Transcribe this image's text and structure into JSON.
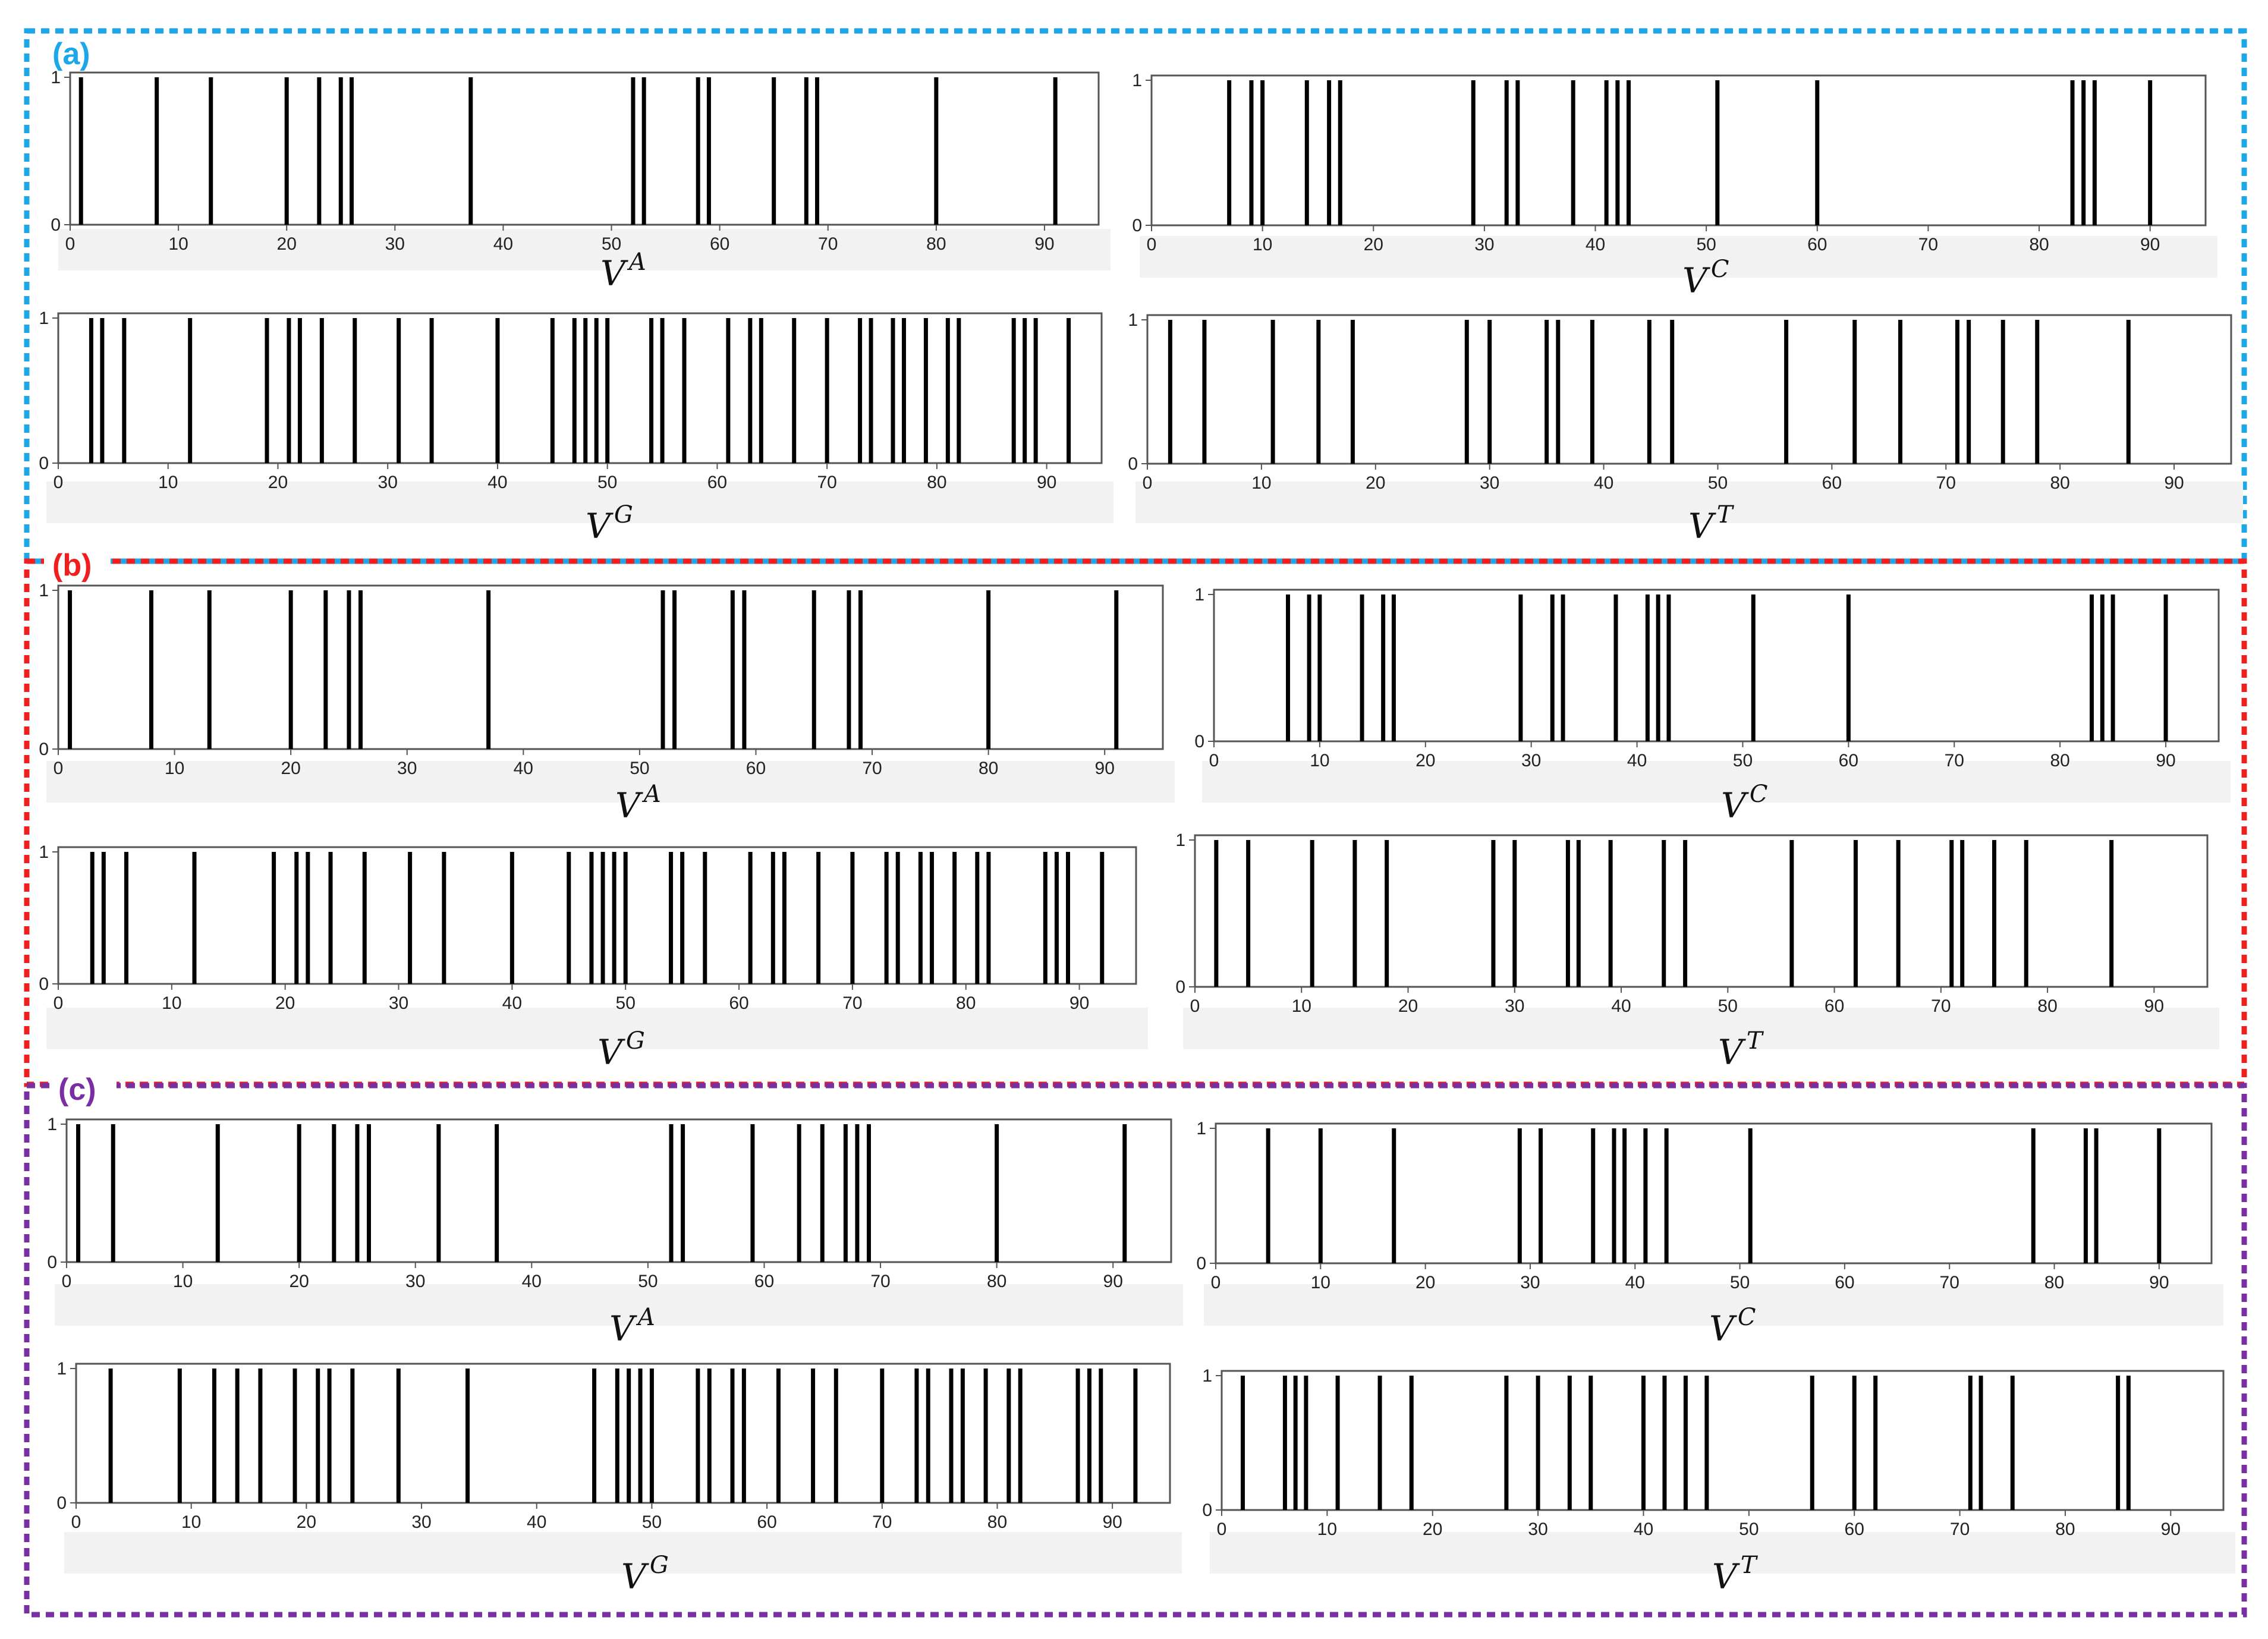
{
  "figure": {
    "colors": {
      "a": "#1ea7e8",
      "b": "#ef1f1f",
      "c": "#7a2ea3",
      "bar": "#000000",
      "axis": "#555555"
    },
    "panels": [
      {
        "label": "(a)",
        "color": "#1ea7e8"
      },
      {
        "label": "(b)",
        "color": "#ef1f1f"
      },
      {
        "label": "(c)",
        "color": "#7a2ea3"
      }
    ]
  },
  "chart_data": [
    {
      "type": "bar",
      "panel": "(a)",
      "name": "V",
      "sup": "A",
      "xlim": [
        0,
        95
      ],
      "ylim": [
        0,
        1
      ],
      "xticks": [
        0,
        10,
        20,
        30,
        40,
        50,
        60,
        70,
        80,
        90
      ],
      "yticks": [
        0,
        1
      ],
      "x": [
        1,
        8,
        13,
        20,
        23,
        25,
        26,
        37,
        52,
        53,
        58,
        59,
        65,
        68,
        69,
        80,
        91
      ]
    },
    {
      "type": "bar",
      "panel": "(a)",
      "name": "V",
      "sup": "C",
      "xlim": [
        0,
        95
      ],
      "ylim": [
        0,
        1
      ],
      "xticks": [
        0,
        10,
        20,
        30,
        40,
        50,
        60,
        70,
        80,
        90
      ],
      "yticks": [
        0,
        1
      ],
      "x": [
        7,
        9,
        10,
        14,
        16,
        17,
        29,
        32,
        33,
        38,
        41,
        42,
        43,
        51,
        60,
        83,
        84,
        85,
        90
      ]
    },
    {
      "type": "bar",
      "panel": "(a)",
      "name": "V",
      "sup": "G",
      "xlim": [
        0,
        95
      ],
      "ylim": [
        0,
        1
      ],
      "xticks": [
        0,
        10,
        20,
        30,
        40,
        50,
        60,
        70,
        80,
        90
      ],
      "yticks": [
        0,
        1
      ],
      "x": [
        3,
        4,
        6,
        12,
        19,
        21,
        22,
        24,
        27,
        31,
        34,
        40,
        45,
        47,
        48,
        49,
        50,
        54,
        55,
        57,
        61,
        63,
        64,
        67,
        70,
        73,
        74,
        76,
        77,
        79,
        81,
        82,
        87,
        88,
        89,
        92
      ]
    },
    {
      "type": "bar",
      "panel": "(a)",
      "name": "V",
      "sup": "T",
      "xlim": [
        0,
        95
      ],
      "ylim": [
        0,
        1
      ],
      "xticks": [
        0,
        10,
        20,
        30,
        40,
        50,
        60,
        70,
        80,
        90
      ],
      "yticks": [
        0,
        1
      ],
      "x": [
        2,
        5,
        11,
        15,
        18,
        28,
        30,
        35,
        36,
        39,
        44,
        46,
        56,
        62,
        66,
        71,
        72,
        75,
        78,
        86
      ]
    },
    {
      "type": "bar",
      "panel": "(b)",
      "name": "V",
      "sup": "A",
      "xlim": [
        0,
        95
      ],
      "ylim": [
        0,
        1
      ],
      "xticks": [
        0,
        10,
        20,
        30,
        40,
        50,
        60,
        70,
        80,
        90
      ],
      "yticks": [
        0,
        1
      ],
      "x": [
        1,
        8,
        13,
        20,
        23,
        25,
        26,
        37,
        52,
        53,
        58,
        59,
        65,
        68,
        69,
        80,
        91
      ]
    },
    {
      "type": "bar",
      "panel": "(b)",
      "name": "V",
      "sup": "C",
      "xlim": [
        0,
        95
      ],
      "ylim": [
        0,
        1
      ],
      "xticks": [
        0,
        10,
        20,
        30,
        40,
        50,
        60,
        70,
        80,
        90
      ],
      "yticks": [
        0,
        1
      ],
      "x": [
        7,
        9,
        10,
        14,
        16,
        17,
        29,
        32,
        33,
        38,
        41,
        42,
        43,
        51,
        60,
        83,
        84,
        85,
        90
      ]
    },
    {
      "type": "bar",
      "panel": "(b)",
      "name": "V",
      "sup": "G",
      "xlim": [
        0,
        95
      ],
      "ylim": [
        0,
        1
      ],
      "xticks": [
        0,
        10,
        20,
        30,
        40,
        50,
        60,
        70,
        80,
        90
      ],
      "yticks": [
        0,
        1
      ],
      "x": [
        3,
        4,
        6,
        12,
        19,
        21,
        22,
        24,
        27,
        31,
        34,
        40,
        45,
        47,
        48,
        49,
        50,
        54,
        55,
        57,
        61,
        63,
        64,
        67,
        70,
        73,
        74,
        76,
        77,
        79,
        81,
        82,
        87,
        88,
        89,
        92
      ]
    },
    {
      "type": "bar",
      "panel": "(b)",
      "name": "V",
      "sup": "T",
      "xlim": [
        0,
        95
      ],
      "ylim": [
        0,
        1
      ],
      "xticks": [
        0,
        10,
        20,
        30,
        40,
        50,
        60,
        70,
        80,
        90
      ],
      "yticks": [
        0,
        1
      ],
      "x": [
        2,
        5,
        11,
        15,
        18,
        28,
        30,
        35,
        36,
        39,
        44,
        46,
        56,
        62,
        66,
        71,
        72,
        75,
        78,
        86
      ]
    },
    {
      "type": "bar",
      "panel": "(c)",
      "name": "V",
      "sup": "A",
      "xlim": [
        0,
        95
      ],
      "ylim": [
        0,
        1
      ],
      "xticks": [
        0,
        10,
        20,
        30,
        40,
        50,
        60,
        70,
        80,
        90
      ],
      "yticks": [
        0,
        1
      ],
      "x": [
        1,
        4,
        13,
        20,
        23,
        25,
        26,
        32,
        37,
        52,
        53,
        59,
        63,
        65,
        67,
        68,
        69,
        80,
        91
      ]
    },
    {
      "type": "bar",
      "panel": "(c)",
      "name": "V",
      "sup": "C",
      "xlim": [
        0,
        95
      ],
      "ylim": [
        0,
        1
      ],
      "xticks": [
        0,
        10,
        20,
        30,
        40,
        50,
        60,
        70,
        80,
        90
      ],
      "yticks": [
        0,
        1
      ],
      "x": [
        5,
        10,
        17,
        29,
        31,
        36,
        38,
        39,
        41,
        43,
        51,
        78,
        83,
        84,
        90
      ]
    },
    {
      "type": "bar",
      "panel": "(c)",
      "name": "V",
      "sup": "G",
      "xlim": [
        0,
        95
      ],
      "ylim": [
        0,
        1
      ],
      "xticks": [
        0,
        10,
        20,
        30,
        40,
        50,
        60,
        70,
        80,
        90
      ],
      "yticks": [
        0,
        1
      ],
      "x": [
        3,
        9,
        12,
        14,
        16,
        19,
        21,
        22,
        24,
        28,
        34,
        45,
        47,
        48,
        49,
        50,
        54,
        55,
        57,
        58,
        61,
        64,
        66,
        70,
        73,
        74,
        76,
        77,
        79,
        81,
        82,
        87,
        88,
        89,
        92
      ]
    },
    {
      "type": "bar",
      "panel": "(c)",
      "name": "V",
      "sup": "T",
      "xlim": [
        0,
        95
      ],
      "ylim": [
        0,
        1
      ],
      "xticks": [
        0,
        10,
        20,
        30,
        40,
        50,
        60,
        70,
        80,
        90
      ],
      "yticks": [
        0,
        1
      ],
      "x": [
        2,
        6,
        7,
        8,
        11,
        15,
        18,
        27,
        30,
        33,
        35,
        40,
        42,
        44,
        46,
        56,
        60,
        62,
        71,
        72,
        75,
        85,
        86
      ]
    }
  ]
}
